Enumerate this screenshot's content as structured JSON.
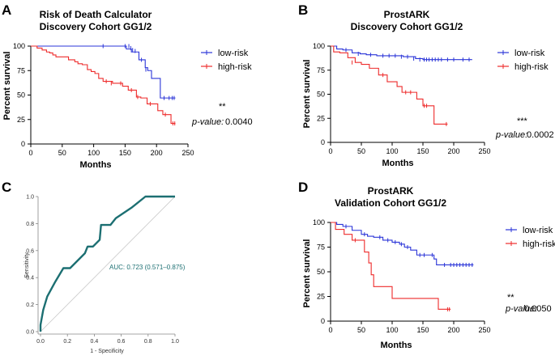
{
  "chart_data": [
    {
      "panel": "A",
      "type": "line",
      "title_lines": [
        "Risk of Death Calculator",
        "Discovery Cohort GG1/2"
      ],
      "xlabel": "Months",
      "ylabel": "Percent survival",
      "xlim": [
        0,
        250
      ],
      "ylim": [
        0,
        100
      ],
      "xticks": [
        0,
        50,
        100,
        150,
        200,
        250
      ],
      "yticks": [
        0,
        25,
        50,
        75,
        100
      ],
      "series": [
        {
          "name": "low-risk",
          "color": "#2b35d8",
          "steps": [
            [
              0,
              100
            ],
            [
              145,
              100
            ],
            [
              152,
              97
            ],
            [
              157,
              97
            ],
            [
              160,
              94
            ],
            [
              168,
              94
            ],
            [
              172,
              86
            ],
            [
              178,
              86
            ],
            [
              182,
              78
            ],
            [
              186,
              75
            ],
            [
              192,
              67
            ],
            [
              200,
              67
            ],
            [
              206,
              47
            ],
            [
              230,
              47
            ]
          ],
          "censors": [
            [
              115,
              100
            ],
            [
              150,
              100
            ],
            [
              156,
              100
            ],
            [
              159,
              98
            ],
            [
              162,
              96
            ],
            [
              166,
              95
            ],
            [
              176,
              86
            ],
            [
              183,
              76
            ],
            [
              212,
              47
            ],
            [
              220,
              47
            ],
            [
              225,
              47
            ],
            [
              228,
              47
            ]
          ]
        },
        {
          "name": "high-risk",
          "color": "#ee2b2b",
          "steps": [
            [
              0,
              100
            ],
            [
              10,
              98
            ],
            [
              18,
              96
            ],
            [
              25,
              94
            ],
            [
              30,
              93
            ],
            [
              35,
              91
            ],
            [
              40,
              89
            ],
            [
              50,
              89
            ],
            [
              60,
              86
            ],
            [
              70,
              84
            ],
            [
              75,
              82
            ],
            [
              82,
              81
            ],
            [
              90,
              76
            ],
            [
              96,
              74
            ],
            [
              102,
              72
            ],
            [
              108,
              67
            ],
            [
              115,
              64
            ],
            [
              125,
              64
            ],
            [
              130,
              62
            ],
            [
              140,
              62
            ],
            [
              146,
              59
            ],
            [
              155,
              55
            ],
            [
              162,
              55
            ],
            [
              168,
              48
            ],
            [
              175,
              47
            ],
            [
              185,
              41
            ],
            [
              195,
              41
            ],
            [
              202,
              34
            ],
            [
              210,
              30
            ],
            [
              218,
              30
            ],
            [
              223,
              21
            ],
            [
              230,
              21
            ]
          ],
          "censors": [
            [
              120,
              64
            ],
            [
              128,
              62
            ],
            [
              143,
              62
            ],
            [
              160,
              55
            ],
            [
              170,
              48
            ],
            [
              190,
              41
            ],
            [
              214,
              30
            ],
            [
              226,
              21
            ],
            [
              229,
              21
            ]
          ]
        }
      ],
      "significance": "**",
      "p_label": "p-value:",
      "p_value": "0.0040"
    },
    {
      "panel": "B",
      "type": "line",
      "title_lines": [
        "ProstARK",
        "Discovery Cohort GG1/2"
      ],
      "xlabel": "Months",
      "ylabel": "Percent survival",
      "xlim": [
        0,
        250
      ],
      "ylim": [
        0,
        100
      ],
      "xticks": [
        0,
        50,
        100,
        150,
        200,
        250
      ],
      "yticks": [
        0,
        25,
        50,
        75,
        100
      ],
      "series": [
        {
          "name": "low-risk",
          "color": "#2b35d8",
          "steps": [
            [
              0,
              100
            ],
            [
              10,
              97
            ],
            [
              20,
              96
            ],
            [
              35,
              93
            ],
            [
              48,
              92
            ],
            [
              58,
              91
            ],
            [
              75,
              90
            ],
            [
              100,
              90
            ],
            [
              118,
              89
            ],
            [
              128,
              89
            ],
            [
              138,
              87
            ],
            [
              150,
              86
            ],
            [
              158,
              86
            ],
            [
              230,
              86
            ]
          ],
          "censors": [
            [
              25,
              96
            ],
            [
              45,
              92
            ],
            [
              65,
              91
            ],
            [
              85,
              90
            ],
            [
              95,
              90
            ],
            [
              105,
              90
            ],
            [
              115,
              89
            ],
            [
              125,
              89
            ],
            [
              135,
              87
            ],
            [
              145,
              86
            ],
            [
              152,
              86
            ],
            [
              156,
              86
            ],
            [
              160,
              86
            ],
            [
              165,
              86
            ],
            [
              170,
              86
            ],
            [
              175,
              86
            ],
            [
              180,
              86
            ],
            [
              190,
              86
            ],
            [
              200,
              86
            ],
            [
              215,
              86
            ],
            [
              225,
              86
            ]
          ]
        },
        {
          "name": "high-risk",
          "color": "#ee2b2b",
          "steps": [
            [
              0,
              100
            ],
            [
              5,
              94
            ],
            [
              15,
              93
            ],
            [
              28,
              88
            ],
            [
              40,
              83
            ],
            [
              50,
              81
            ],
            [
              63,
              77
            ],
            [
              78,
              70
            ],
            [
              92,
              63
            ],
            [
              108,
              58
            ],
            [
              116,
              52
            ],
            [
              128,
              52
            ],
            [
              140,
              45
            ],
            [
              150,
              38
            ],
            [
              160,
              38
            ],
            [
              168,
              19
            ],
            [
              190,
              19
            ]
          ],
          "censors": [
            [
              35,
              83
            ],
            [
              85,
              70
            ],
            [
              122,
              52
            ],
            [
              130,
              52
            ],
            [
              152,
              38
            ],
            [
              156,
              38
            ],
            [
              188,
              19
            ]
          ]
        }
      ],
      "significance": "***",
      "p_label": "p-value:",
      "p_value": "0.0002"
    },
    {
      "panel": "C",
      "type": "line",
      "xlabel": "1 - Specificity",
      "ylabel": "Sensitivity",
      "xlim": [
        0,
        1
      ],
      "ylim": [
        0,
        1
      ],
      "xticks": [
        "0.0",
        "0.2",
        "0.4",
        "0.6",
        "0.8",
        "1.0"
      ],
      "yticks": [
        "0.0",
        "0.2",
        "0.4",
        "0.6",
        "0.8",
        "1.0"
      ],
      "roc": {
        "color": "#1c6f72",
        "points": [
          [
            0,
            0
          ],
          [
            0,
            0.05
          ],
          [
            0.02,
            0.16
          ],
          [
            0.05,
            0.26
          ],
          [
            0.11,
            0.37
          ],
          [
            0.17,
            0.47
          ],
          [
            0.22,
            0.47
          ],
          [
            0.33,
            0.58
          ],
          [
            0.35,
            0.63
          ],
          [
            0.39,
            0.63
          ],
          [
            0.44,
            0.68
          ],
          [
            0.45,
            0.79
          ],
          [
            0.52,
            0.79
          ],
          [
            0.56,
            0.84
          ],
          [
            0.68,
            0.92
          ],
          [
            0.78,
            1.0
          ],
          [
            1.0,
            1.0
          ]
        ]
      },
      "auc_text": "AUC: 0.723 (0.571–0.875)"
    },
    {
      "panel": "D",
      "type": "line",
      "title_lines": [
        "ProstARK",
        "Validation Cohort GG1/2"
      ],
      "xlabel": "Months",
      "ylabel": "Percent survival",
      "xlim": [
        0,
        250
      ],
      "ylim": [
        0,
        100
      ],
      "xticks": [
        0,
        50,
        100,
        150,
        200,
        250
      ],
      "yticks": [
        0,
        25,
        50,
        75,
        100
      ],
      "series": [
        {
          "name": "low-risk",
          "color": "#2b35d8",
          "steps": [
            [
              0,
              100
            ],
            [
              10,
              98
            ],
            [
              20,
              96
            ],
            [
              35,
              92
            ],
            [
              50,
              88
            ],
            [
              60,
              86
            ],
            [
              70,
              85
            ],
            [
              85,
              82
            ],
            [
              100,
              80
            ],
            [
              112,
              78
            ],
            [
              120,
              75
            ],
            [
              130,
              72
            ],
            [
              140,
              67
            ],
            [
              160,
              67
            ],
            [
              168,
              63
            ],
            [
              172,
              57
            ],
            [
              232,
              57
            ]
          ],
          "censors": [
            [
              25,
              96
            ],
            [
              55,
              88
            ],
            [
              80,
              85
            ],
            [
              93,
              82
            ],
            [
              105,
              80
            ],
            [
              115,
              78
            ],
            [
              125,
              75
            ],
            [
              145,
              67
            ],
            [
              152,
              67
            ],
            [
              165,
              67
            ],
            [
              185,
              57
            ],
            [
              195,
              57
            ],
            [
              200,
              57
            ],
            [
              205,
              57
            ],
            [
              210,
              57
            ],
            [
              215,
              57
            ],
            [
              220,
              57
            ],
            [
              225,
              57
            ],
            [
              230,
              57
            ]
          ]
        },
        {
          "name": "high-risk",
          "color": "#ee2b2b",
          "steps": [
            [
              0,
              100
            ],
            [
              8,
              93
            ],
            [
              22,
              88
            ],
            [
              35,
              82
            ],
            [
              48,
              82
            ],
            [
              55,
              70
            ],
            [
              62,
              59
            ],
            [
              66,
              47
            ],
            [
              70,
              35
            ],
            [
              82,
              35
            ],
            [
              100,
              23
            ],
            [
              120,
              23
            ],
            [
              175,
              12
            ],
            [
              195,
              12
            ]
          ],
          "censors": [
            [
              40,
              82
            ],
            [
              190,
              12
            ],
            [
              193,
              12
            ]
          ]
        }
      ],
      "significance": "**",
      "p_label": "p-value:",
      "p_value": "0.0050"
    }
  ]
}
